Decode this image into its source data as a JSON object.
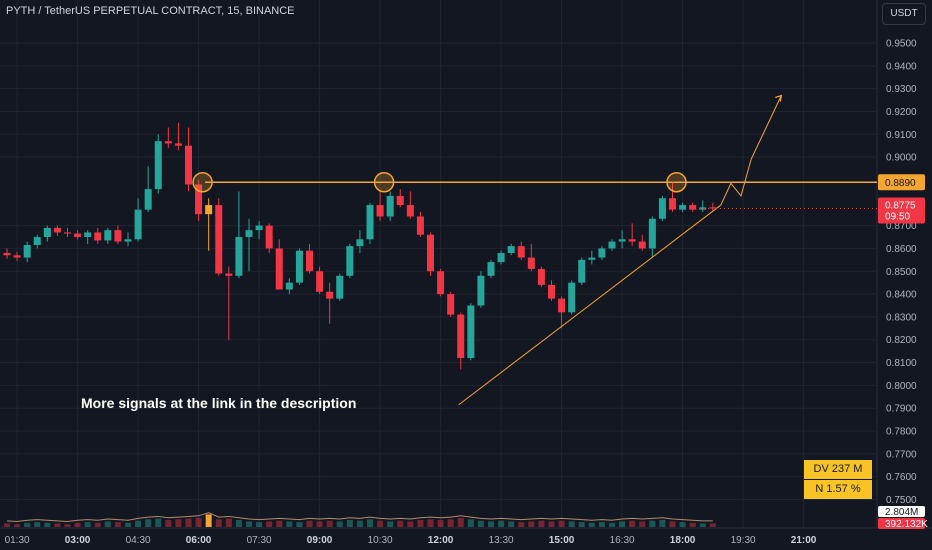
{
  "header": {
    "symbol_line": "PYTH / TetherUS PERPETUAL CONTRACT, 15, BINANCE",
    "currency_button": "USDT"
  },
  "annotation_text": "More signals at the link in the description",
  "stats": {
    "dv": "DV 237 M",
    "n": "N 1.57 %"
  },
  "colors": {
    "background": "#131722",
    "up": "#26a69a",
    "down": "#f23645",
    "accent": "#f7a531",
    "grid": "#1f2430",
    "axis_text": "#b2b5be"
  },
  "chart_data": {
    "type": "candlestick",
    "title": "",
    "xlabel": "",
    "ylabel": "",
    "y_axis_ticks": [
      "0.9500",
      "0.9400",
      "0.9300",
      "0.9200",
      "0.9100",
      "0.9000",
      "0.8700",
      "0.8600",
      "0.8500",
      "0.8400",
      "0.8300",
      "0.8200",
      "0.8100",
      "0.8000",
      "0.7900",
      "0.7800",
      "0.7700",
      "0.7600",
      "0.7500"
    ],
    "x_axis_ticks": [
      "01:30",
      "03:00",
      "04:30",
      "06:00",
      "07:30",
      "09:00",
      "10:30",
      "12:00",
      "13:30",
      "15:00",
      "16:30",
      "18:00",
      "19:30",
      "21:00"
    ],
    "ylim": [
      0.747,
      0.958
    ],
    "resistance_level": 0.889,
    "resistance_label": "0.8890",
    "last_price_label": "0.8775",
    "countdown_label": "09:50",
    "volume_labels": [
      "2.804M",
      "392.132K"
    ],
    "candles": [
      {
        "t": "01:15",
        "o": 0.858,
        "h": 0.86,
        "l": 0.8555,
        "c": 0.857
      },
      {
        "t": "01:30",
        "o": 0.857,
        "h": 0.8585,
        "l": 0.8545,
        "c": 0.856
      },
      {
        "t": "01:45",
        "o": 0.856,
        "h": 0.863,
        "l": 0.854,
        "c": 0.8615
      },
      {
        "t": "02:00",
        "o": 0.8615,
        "h": 0.866,
        "l": 0.86,
        "c": 0.865
      },
      {
        "t": "02:15",
        "o": 0.865,
        "h": 0.87,
        "l": 0.863,
        "c": 0.869
      },
      {
        "t": "02:30",
        "o": 0.869,
        "h": 0.87,
        "l": 0.8655,
        "c": 0.867
      },
      {
        "t": "02:45",
        "o": 0.867,
        "h": 0.869,
        "l": 0.865,
        "c": 0.8665
      },
      {
        "t": "03:00",
        "o": 0.8665,
        "h": 0.868,
        "l": 0.864,
        "c": 0.865
      },
      {
        "t": "03:15",
        "o": 0.865,
        "h": 0.868,
        "l": 0.862,
        "c": 0.867
      },
      {
        "t": "03:30",
        "o": 0.867,
        "h": 0.869,
        "l": 0.862,
        "c": 0.8635
      },
      {
        "t": "03:45",
        "o": 0.8635,
        "h": 0.869,
        "l": 0.862,
        "c": 0.868
      },
      {
        "t": "04:00",
        "o": 0.868,
        "h": 0.87,
        "l": 0.862,
        "c": 0.863
      },
      {
        "t": "04:15",
        "o": 0.863,
        "h": 0.867,
        "l": 0.861,
        "c": 0.864
      },
      {
        "t": "04:30",
        "o": 0.864,
        "h": 0.882,
        "l": 0.863,
        "c": 0.877
      },
      {
        "t": "04:45",
        "o": 0.877,
        "h": 0.896,
        "l": 0.876,
        "c": 0.886
      },
      {
        "t": "05:00",
        "o": 0.886,
        "h": 0.91,
        "l": 0.884,
        "c": 0.907
      },
      {
        "t": "05:15",
        "o": 0.907,
        "h": 0.913,
        "l": 0.904,
        "c": 0.906
      },
      {
        "t": "05:30",
        "o": 0.906,
        "h": 0.915,
        "l": 0.903,
        "c": 0.905
      },
      {
        "t": "05:45",
        "o": 0.905,
        "h": 0.913,
        "l": 0.885,
        "c": 0.888
      },
      {
        "t": "06:00",
        "o": 0.888,
        "h": 0.89,
        "l": 0.872,
        "c": 0.875
      },
      {
        "t": "06:15",
        "o": 0.875,
        "h": 0.882,
        "l": 0.859,
        "c": 0.879
      },
      {
        "t": "06:30",
        "o": 0.879,
        "h": 0.882,
        "l": 0.848,
        "c": 0.849
      },
      {
        "t": "06:45",
        "o": 0.849,
        "h": 0.852,
        "l": 0.82,
        "c": 0.848
      },
      {
        "t": "07:00",
        "o": 0.848,
        "h": 0.885,
        "l": 0.847,
        "c": 0.865
      },
      {
        "t": "07:15",
        "o": 0.865,
        "h": 0.873,
        "l": 0.85,
        "c": 0.868
      },
      {
        "t": "07:30",
        "o": 0.868,
        "h": 0.872,
        "l": 0.864,
        "c": 0.87
      },
      {
        "t": "07:45",
        "o": 0.87,
        "h": 0.871,
        "l": 0.858,
        "c": 0.86
      },
      {
        "t": "08:00",
        "o": 0.86,
        "h": 0.864,
        "l": 0.842,
        "c": 0.842
      },
      {
        "t": "08:15",
        "o": 0.842,
        "h": 0.847,
        "l": 0.84,
        "c": 0.845
      },
      {
        "t": "08:30",
        "o": 0.845,
        "h": 0.86,
        "l": 0.844,
        "c": 0.859
      },
      {
        "t": "08:45",
        "o": 0.859,
        "h": 0.862,
        "l": 0.849,
        "c": 0.85
      },
      {
        "t": "09:00",
        "o": 0.85,
        "h": 0.852,
        "l": 0.84,
        "c": 0.841
      },
      {
        "t": "09:15",
        "o": 0.841,
        "h": 0.845,
        "l": 0.827,
        "c": 0.838
      },
      {
        "t": "09:30",
        "o": 0.838,
        "h": 0.849,
        "l": 0.837,
        "c": 0.848
      },
      {
        "t": "09:45",
        "o": 0.848,
        "h": 0.862,
        "l": 0.847,
        "c": 0.861
      },
      {
        "t": "10:00",
        "o": 0.861,
        "h": 0.868,
        "l": 0.858,
        "c": 0.864
      },
      {
        "t": "10:15",
        "o": 0.864,
        "h": 0.88,
        "l": 0.862,
        "c": 0.879
      },
      {
        "t": "10:30",
        "o": 0.879,
        "h": 0.885,
        "l": 0.872,
        "c": 0.874
      },
      {
        "t": "10:45",
        "o": 0.874,
        "h": 0.885,
        "l": 0.872,
        "c": 0.883
      },
      {
        "t": "11:00",
        "o": 0.883,
        "h": 0.886,
        "l": 0.878,
        "c": 0.879
      },
      {
        "t": "11:15",
        "o": 0.879,
        "h": 0.885,
        "l": 0.873,
        "c": 0.874
      },
      {
        "t": "11:30",
        "o": 0.874,
        "h": 0.876,
        "l": 0.865,
        "c": 0.866
      },
      {
        "t": "11:45",
        "o": 0.866,
        "h": 0.867,
        "l": 0.848,
        "c": 0.85
      },
      {
        "t": "12:00",
        "o": 0.85,
        "h": 0.851,
        "l": 0.839,
        "c": 0.84
      },
      {
        "t": "12:15",
        "o": 0.84,
        "h": 0.841,
        "l": 0.83,
        "c": 0.831
      },
      {
        "t": "12:30",
        "o": 0.831,
        "h": 0.832,
        "l": 0.807,
        "c": 0.812
      },
      {
        "t": "12:45",
        "o": 0.812,
        "h": 0.836,
        "l": 0.811,
        "c": 0.835
      },
      {
        "t": "13:00",
        "o": 0.835,
        "h": 0.85,
        "l": 0.834,
        "c": 0.848
      },
      {
        "t": "13:15",
        "o": 0.848,
        "h": 0.855,
        "l": 0.847,
        "c": 0.854
      },
      {
        "t": "13:30",
        "o": 0.854,
        "h": 0.859,
        "l": 0.853,
        "c": 0.858
      },
      {
        "t": "13:45",
        "o": 0.858,
        "h": 0.862,
        "l": 0.857,
        "c": 0.861
      },
      {
        "t": "14:00",
        "o": 0.861,
        "h": 0.863,
        "l": 0.855,
        "c": 0.856
      },
      {
        "t": "14:15",
        "o": 0.856,
        "h": 0.862,
        "l": 0.85,
        "c": 0.851
      },
      {
        "t": "14:30",
        "o": 0.851,
        "h": 0.852,
        "l": 0.843,
        "c": 0.844
      },
      {
        "t": "14:45",
        "o": 0.844,
        "h": 0.846,
        "l": 0.837,
        "c": 0.838
      },
      {
        "t": "15:00",
        "o": 0.838,
        "h": 0.839,
        "l": 0.825,
        "c": 0.832
      },
      {
        "t": "15:15",
        "o": 0.832,
        "h": 0.846,
        "l": 0.831,
        "c": 0.845
      },
      {
        "t": "15:30",
        "o": 0.845,
        "h": 0.856,
        "l": 0.844,
        "c": 0.855
      },
      {
        "t": "15:45",
        "o": 0.855,
        "h": 0.859,
        "l": 0.853,
        "c": 0.856
      },
      {
        "t": "16:00",
        "o": 0.856,
        "h": 0.861,
        "l": 0.855,
        "c": 0.86
      },
      {
        "t": "16:15",
        "o": 0.86,
        "h": 0.864,
        "l": 0.859,
        "c": 0.863
      },
      {
        "t": "16:30",
        "o": 0.863,
        "h": 0.868,
        "l": 0.86,
        "c": 0.864
      },
      {
        "t": "16:45",
        "o": 0.864,
        "h": 0.871,
        "l": 0.861,
        "c": 0.863
      },
      {
        "t": "17:00",
        "o": 0.863,
        "h": 0.866,
        "l": 0.859,
        "c": 0.86
      },
      {
        "t": "17:15",
        "o": 0.86,
        "h": 0.874,
        "l": 0.856,
        "c": 0.873
      },
      {
        "t": "17:30",
        "o": 0.873,
        "h": 0.883,
        "l": 0.872,
        "c": 0.882
      },
      {
        "t": "17:45",
        "o": 0.882,
        "h": 0.889,
        "l": 0.876,
        "c": 0.877
      },
      {
        "t": "18:00",
        "o": 0.877,
        "h": 0.88,
        "l": 0.876,
        "c": 0.879
      },
      {
        "t": "18:15",
        "o": 0.879,
        "h": 0.88,
        "l": 0.876,
        "c": 0.877
      },
      {
        "t": "18:30",
        "o": 0.877,
        "h": 0.881,
        "l": 0.876,
        "c": 0.878
      },
      {
        "t": "18:45",
        "o": 0.878,
        "h": 0.88,
        "l": 0.8765,
        "c": 0.8775
      }
    ],
    "volume_note": "relative volume bars shown at bottom",
    "volumes": [
      0.25,
      0.2,
      0.3,
      0.35,
      0.3,
      0.25,
      0.2,
      0.3,
      0.35,
      0.3,
      0.4,
      0.35,
      0.3,
      0.45,
      0.55,
      0.6,
      0.5,
      0.55,
      0.6,
      0.65,
      0.9,
      0.55,
      0.6,
      0.5,
      0.4,
      0.35,
      0.4,
      0.45,
      0.4,
      0.35,
      0.45,
      0.4,
      0.45,
      0.4,
      0.5,
      0.45,
      0.55,
      0.45,
      0.4,
      0.45,
      0.4,
      0.5,
      0.55,
      0.5,
      0.55,
      0.65,
      0.55,
      0.45,
      0.4,
      0.45,
      0.4,
      0.35,
      0.4,
      0.45,
      0.4,
      0.45,
      0.4,
      0.35,
      0.3,
      0.35,
      0.3,
      0.4,
      0.45,
      0.4,
      0.45,
      0.5,
      0.4,
      0.35,
      0.3,
      0.25,
      0.25
    ],
    "highlighted_candle": "06:15",
    "circled_candles": [
      "06:00",
      "10:30",
      "17:45"
    ],
    "support_line": [
      {
        "t": "12:30",
        "v": 0.7915
      },
      {
        "t": "18:45",
        "v": 0.879
      }
    ],
    "projection_path": [
      {
        "t": "18:45",
        "v": 0.879
      },
      {
        "t": "19:00",
        "v": 0.8885
      },
      {
        "t": "19:15",
        "v": 0.883
      },
      {
        "t": "19:30",
        "v": 0.899
      },
      {
        "t": "20:15",
        "v": 0.927
      }
    ]
  }
}
